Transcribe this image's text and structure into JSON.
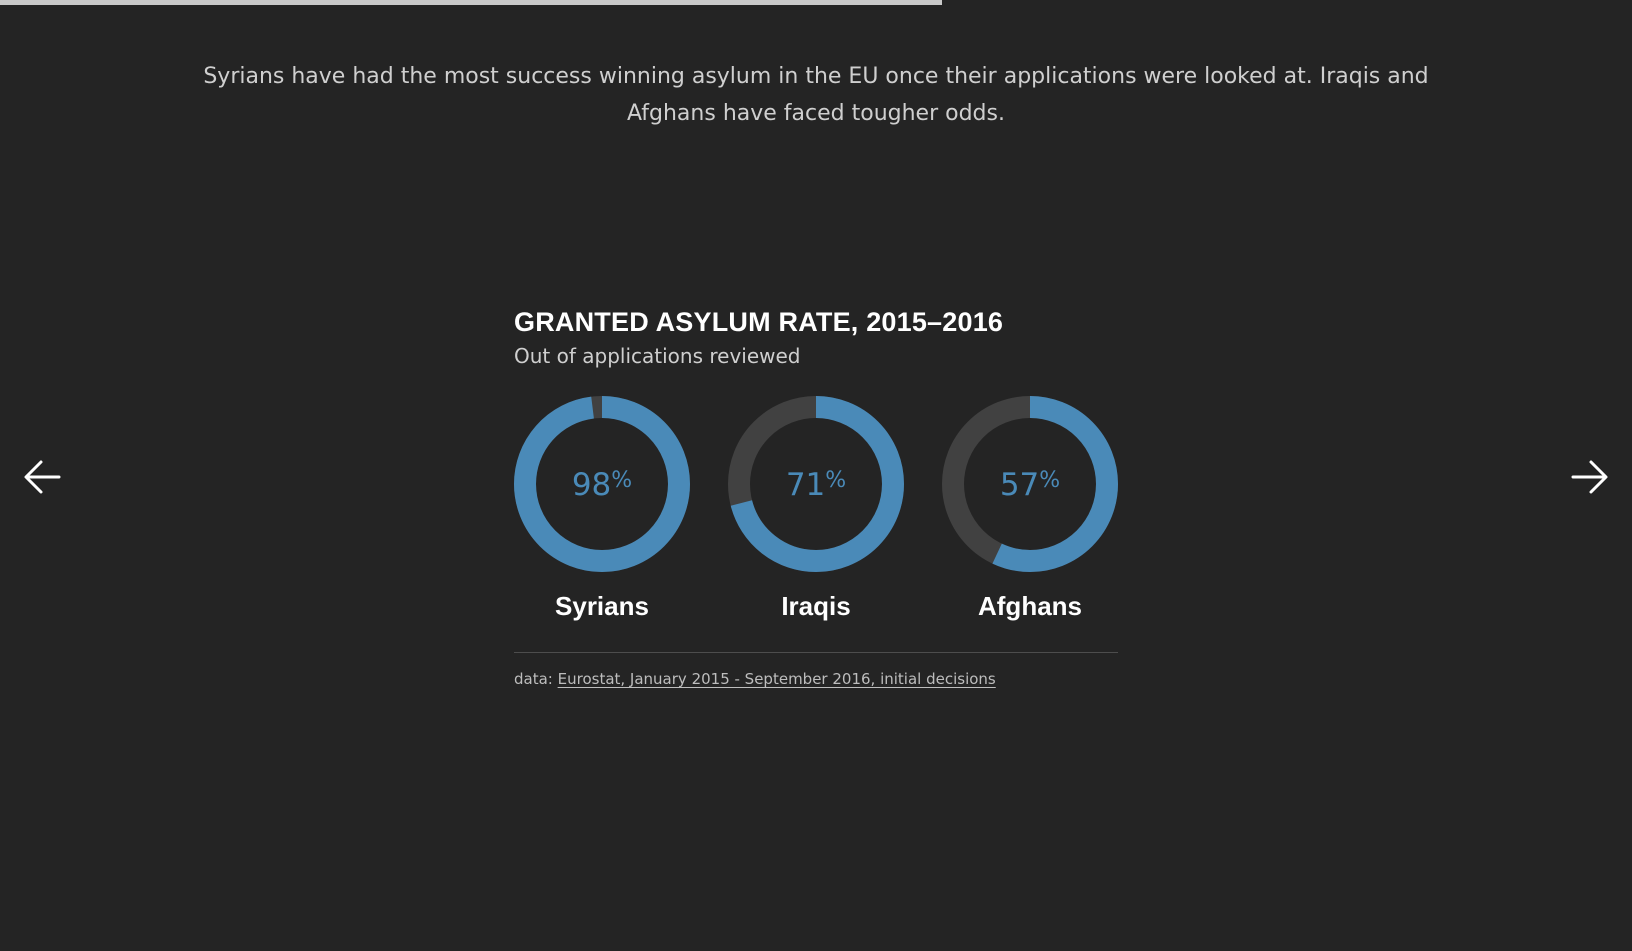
{
  "progress": {
    "fraction": 0.577
  },
  "intro_text": "Syrians have had the most success winning asylum in the EU once their applications were looked at. Iraqis and Afghans have faced tougher odds.",
  "nav": {
    "prev_icon": "arrow-left-icon",
    "next_icon": "arrow-right-icon"
  },
  "colors": {
    "background": "#242424",
    "accent": "#4a8ab8",
    "track": "#414141",
    "text": "#ffffff"
  },
  "chart_data": {
    "type": "pie",
    "title": "GRANTED ASYLUM RATE, 2015–2016",
    "subtitle": "Out of applications reviewed",
    "unit": "%",
    "categories": [
      "Syrians",
      "Iraqis",
      "Afghans"
    ],
    "values": [
      98,
      71,
      57
    ],
    "value_labels": [
      "98",
      "71",
      "57"
    ]
  },
  "source": {
    "prefix": "data:",
    "link_text": "Eurostat, January 2015 - September 2016, initial decisions"
  }
}
